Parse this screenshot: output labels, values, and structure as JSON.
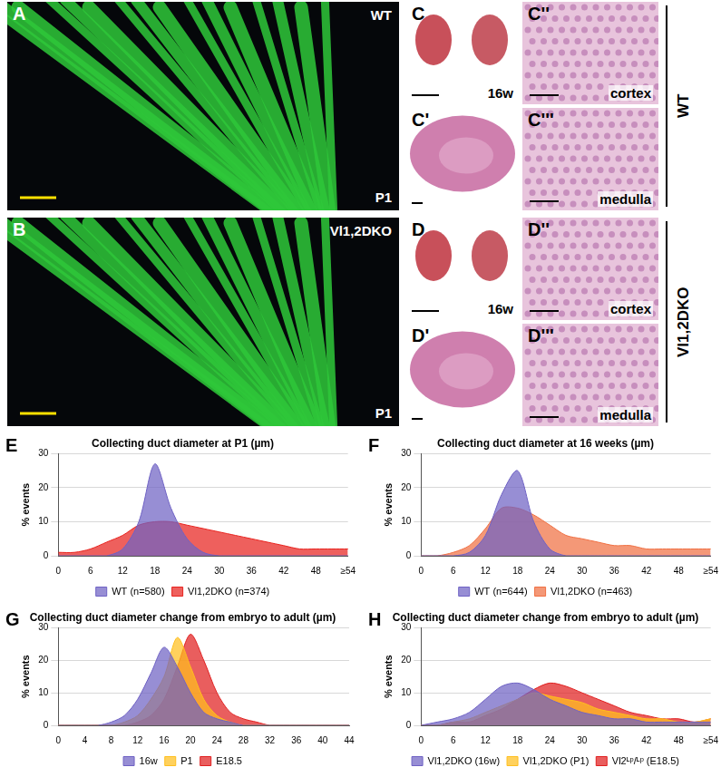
{
  "image_panels": [
    {
      "label": "A",
      "texts": [
        "WT",
        "P1"
      ]
    },
    {
      "label": "B",
      "texts": [
        "Vl1,2DKO",
        "P1"
      ]
    },
    {
      "label": "C",
      "texts": [
        "16w"
      ]
    },
    {
      "label": "C'",
      "texts": []
    },
    {
      "label": "C''",
      "texts": [
        "cortex"
      ]
    },
    {
      "label": "C'''",
      "texts": [
        "medulla"
      ]
    },
    {
      "label": "D",
      "texts": [
        "16w"
      ]
    },
    {
      "label": "D'",
      "texts": []
    },
    {
      "label": "D''",
      "texts": [
        "cortex"
      ]
    },
    {
      "label": "D'''",
      "texts": [
        "medulla"
      ]
    }
  ],
  "group_labels": [
    "WT",
    "Vl1,2DKO"
  ],
  "chart_data": [
    {
      "type": "area",
      "annotations": [
        "E"
      ],
      "title": "Collecting duct diameter at P1 (µm)",
      "y_label": "% events",
      "categories": [
        "0",
        null,
        "6",
        null,
        "12",
        null,
        "18",
        null,
        "24",
        null,
        "30",
        null,
        "36",
        null,
        "42",
        null,
        "48",
        null,
        "≥54"
      ],
      "series": [
        {
          "name": "WT (n=580)",
          "color": "#6f62c4",
          "values": [
            0,
            0,
            0,
            0,
            2,
            10,
            27,
            14,
            5,
            1,
            0,
            0,
            0,
            0,
            0,
            0,
            0,
            0,
            0
          ]
        },
        {
          "name": "Vl1,2DKO (n=374)",
          "color": "#e8231e",
          "values": [
            1,
            1,
            2,
            4,
            6,
            9,
            10,
            10,
            9,
            8,
            7,
            6,
            5,
            4,
            3,
            2,
            2,
            2,
            2
          ]
        }
      ],
      "ylim": [
        0,
        30
      ],
      "yticks": [
        0,
        10,
        20,
        30
      ],
      "grid": true,
      "legend": "bottom"
    },
    {
      "type": "area",
      "annotations": [
        "F"
      ],
      "title": "Collecting duct diameter at 16 weeks (µm)",
      "y_label": "% events",
      "categories": [
        "0",
        null,
        "6",
        null,
        "12",
        null,
        "18",
        null,
        "24",
        null,
        "30",
        null,
        "36",
        null,
        "42",
        null,
        "48",
        null,
        "≥54"
      ],
      "series": [
        {
          "name": "WT (n=644)",
          "color": "#6f62c4",
          "values": [
            0,
            0,
            0,
            1,
            6,
            18,
            25,
            10,
            2,
            0,
            0,
            0,
            0,
            0,
            0,
            0,
            0,
            0,
            0
          ]
        },
        {
          "name": "Vl1,2DKO (n=463)",
          "color": "#f07043",
          "values": [
            0,
            0,
            1,
            3,
            8,
            14,
            14,
            12,
            9,
            6,
            5,
            4,
            3,
            3,
            2,
            2,
            2,
            2,
            2
          ]
        }
      ],
      "ylim": [
        0,
        30
      ],
      "yticks": [
        0,
        10,
        20,
        30
      ],
      "grid": true,
      "legend": "bottom"
    },
    {
      "type": "area",
      "annotations": [
        "G"
      ],
      "title": "Collecting duct diameter change from embryo to adult (µm)",
      "y_label": "% events",
      "categories": [
        "0",
        null,
        "4",
        null,
        "8",
        null,
        "12",
        null,
        "16",
        null,
        "20",
        null,
        "24",
        null,
        "28",
        null,
        "32",
        null,
        "36",
        null,
        "40",
        null,
        "44"
      ],
      "series": [
        {
          "name": "16w",
          "color": "#6f62c4",
          "values": [
            0,
            0,
            0,
            0,
            1,
            3,
            8,
            16,
            24,
            18,
            10,
            4,
            2,
            1,
            0,
            0,
            0,
            0,
            0,
            0,
            0,
            0,
            0
          ]
        },
        {
          "name": "P1",
          "color": "#ffbf1f",
          "values": [
            0,
            0,
            0,
            0,
            0,
            1,
            3,
            8,
            15,
            27,
            18,
            8,
            3,
            1,
            0,
            0,
            0,
            0,
            0,
            0,
            0,
            0,
            0
          ]
        },
        {
          "name": "E18.5",
          "color": "#e02020",
          "values": [
            0,
            0,
            0,
            0,
            0,
            0,
            1,
            3,
            8,
            18,
            28,
            20,
            10,
            4,
            2,
            1,
            0,
            0,
            0,
            0,
            0,
            0,
            0
          ]
        }
      ],
      "ylim": [
        0,
        30
      ],
      "yticks": [
        0,
        10,
        20,
        30
      ],
      "grid": true,
      "legend": "bottom"
    },
    {
      "type": "area",
      "annotations": [
        "H"
      ],
      "title": "Collecting duct diameter change from embryo to adult (µm)",
      "y_label": "% events",
      "categories": [
        "0",
        null,
        "6",
        null,
        "12",
        null,
        "18",
        null,
        "24",
        null,
        "30",
        null,
        "36",
        null,
        "42",
        null,
        "48",
        null,
        "≥54"
      ],
      "series": [
        {
          "name": "Vl1,2DKO (16w)",
          "color": "#6f62c4",
          "values": [
            0,
            1,
            2,
            4,
            8,
            12,
            13,
            11,
            8,
            6,
            4,
            3,
            2,
            2,
            1,
            1,
            1,
            1,
            1
          ]
        },
        {
          "name": "Vl1,2DKO (P1)",
          "color": "#ffbf1f",
          "values": [
            0,
            0,
            1,
            2,
            4,
            6,
            8,
            10,
            9,
            8,
            7,
            5,
            4,
            3,
            2,
            2,
            1,
            1,
            2
          ]
        },
        {
          "name": "Vl2ᴸᵖ/ᴸᵖ (E18.5)",
          "color": "#e02020",
          "values": [
            0,
            0,
            1,
            1,
            3,
            5,
            8,
            11,
            13,
            12,
            10,
            8,
            6,
            4,
            3,
            2,
            2,
            1,
            2
          ]
        }
      ],
      "ylim": [
        0,
        30
      ],
      "yticks": [
        0,
        10,
        20,
        30
      ],
      "grid": true,
      "legend": "bottom"
    }
  ]
}
